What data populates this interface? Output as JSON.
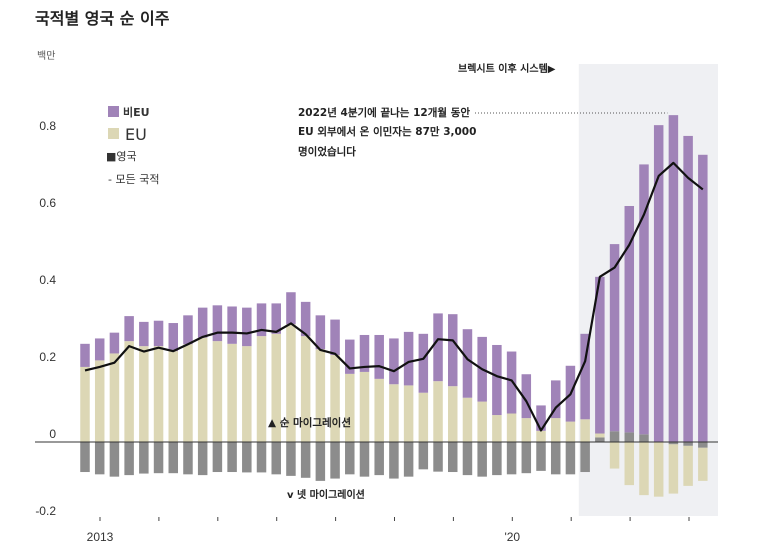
{
  "chart_data": {
    "type": "bar",
    "stacked": true,
    "title": "국적별 영국 순 이주",
    "ylabel": "백만",
    "ylim": [
      -0.2,
      0.9
    ],
    "yticks": [
      "0.8",
      "0.6",
      "0.4",
      "0.2",
      "0",
      "-0.2"
    ],
    "ytick_values": [
      0.8,
      0.6,
      0.4,
      0.2,
      0,
      -0.2
    ],
    "xtick_labels": [
      {
        "label": "2013",
        "tick_index": 0
      },
      {
        "label": "'20",
        "tick_index": 7
      }
    ],
    "xtick_count": 11,
    "grid": false,
    "legend_position": "top-left",
    "legend": {
      "non_eu": "비EU",
      "eu": "EU",
      "uk": "■영국",
      "all": "- 모든 국적"
    },
    "colors": {
      "non_eu": "#a083b8",
      "eu": "#dcd7b5",
      "uk": "#8c8c8c",
      "all": "#111111",
      "shade": "#eff0f3"
    },
    "series": [
      {
        "name": "비EU",
        "values": [
          0.06,
          0.057,
          0.054,
          0.065,
          0.063,
          0.066,
          0.073,
          0.075,
          0.078,
          0.093,
          0.097,
          0.1,
          0.085,
          0.079,
          0.083,
          0.089,
          0.088,
          0.092,
          0.089,
          0.096,
          0.114,
          0.119,
          0.139,
          0.153,
          0.176,
          0.187,
          0.178,
          0.168,
          0.182,
          0.161,
          0.114,
          0.066,
          0.098,
          0.145,
          0.222,
          0.407,
          0.486,
          0.588,
          0.701,
          0.823,
          0.849,
          0.795,
          0.746
        ]
      },
      {
        "name": "EU",
        "values": [
          0.195,
          0.212,
          0.23,
          0.262,
          0.249,
          0.249,
          0.236,
          0.254,
          0.271,
          0.262,
          0.255,
          0.249,
          0.275,
          0.281,
          0.306,
          0.275,
          0.241,
          0.226,
          0.177,
          0.182,
          0.164,
          0.15,
          0.147,
          0.128,
          0.158,
          0.145,
          0.115,
          0.105,
          0.07,
          0.074,
          0.062,
          0.029,
          0.062,
          0.053,
          0.059,
          0.01,
          -0.069,
          -0.112,
          -0.138,
          -0.142,
          -0.128,
          -0.104,
          -0.086
        ]
      },
      {
        "name": "■영국",
        "values": [
          -0.078,
          -0.084,
          -0.09,
          -0.086,
          -0.082,
          -0.081,
          -0.081,
          -0.084,
          -0.086,
          -0.078,
          -0.078,
          -0.079,
          -0.079,
          -0.084,
          -0.088,
          -0.093,
          -0.101,
          -0.095,
          -0.084,
          -0.09,
          -0.086,
          -0.095,
          -0.09,
          -0.071,
          -0.077,
          -0.078,
          -0.086,
          -0.09,
          -0.086,
          -0.084,
          -0.081,
          -0.075,
          -0.084,
          -0.084,
          -0.078,
          0.012,
          0.028,
          0.025,
          0.02,
          0.0,
          -0.006,
          -0.01,
          -0.015
        ]
      },
      {
        "name": "- 모든 국적",
        "type": "line",
        "values": [
          0.186,
          0.195,
          0.206,
          0.249,
          0.235,
          0.245,
          0.236,
          0.254,
          0.273,
          0.284,
          0.284,
          0.282,
          0.291,
          0.286,
          0.308,
          0.28,
          0.239,
          0.229,
          0.191,
          0.195,
          0.197,
          0.184,
          0.208,
          0.216,
          0.267,
          0.264,
          0.215,
          0.189,
          0.171,
          0.16,
          0.106,
          0.03,
          0.089,
          0.124,
          0.21,
          0.429,
          0.453,
          0.512,
          0.591,
          0.691,
          0.725,
          0.686,
          0.656
        ]
      }
    ],
    "shaded_region": {
      "label": "브렉시트 이후 시스템▶",
      "start_index": 33
    },
    "annotations": {
      "callout": [
        "2022년 4분기에 끝나는 12개월 동안",
        "EU 외부에서 온 이민자는 87만 3,000",
        "명이었습니다"
      ],
      "callout_index": 40,
      "inflow": "▲ 순 마이그레이션",
      "outflow": "v 넷 마이그레이션"
    }
  }
}
